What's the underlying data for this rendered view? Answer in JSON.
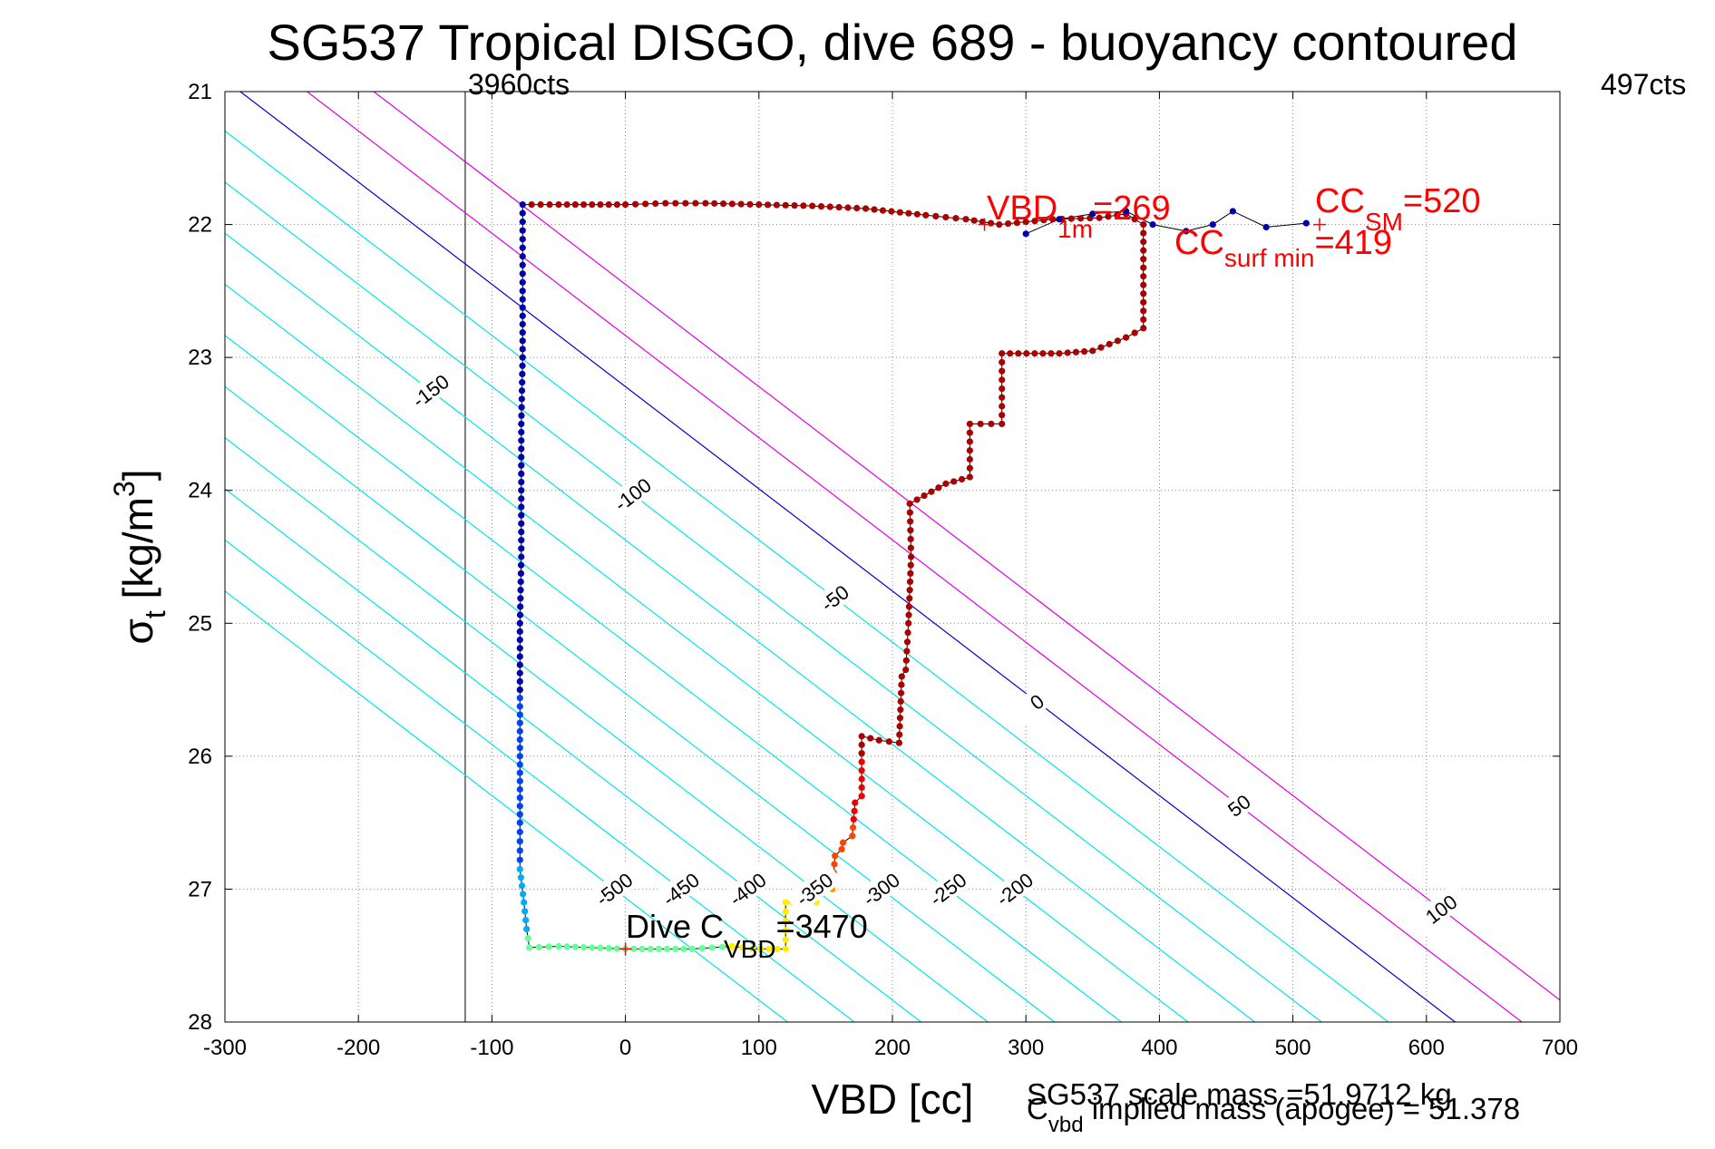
{
  "chart_data": {
    "type": "scatter",
    "title": "SG537 Tropical DISGO, dive 689 - buoyancy contoured",
    "xlabel": "VBD [cc]",
    "ylabel_main": "σ",
    "ylabel_sub": "t",
    "ylabel_unit": " [kg/m",
    "ylabel_sup": "3",
    "ylabel_close": "]",
    "xlim": [
      -300,
      700
    ],
    "ylim": [
      21,
      28
    ],
    "y_reversed": true,
    "grid": true,
    "xticks": [
      -300,
      -200,
      -100,
      0,
      100,
      200,
      300,
      400,
      500,
      600,
      700
    ],
    "yticks": [
      21,
      22,
      23,
      24,
      25,
      26,
      27,
      28
    ],
    "colors": {
      "contour_neg": "#00e5e5",
      "contour_zero": "#0000cc",
      "contour_pos": "#e000e0",
      "annotation_red": "#ff0000",
      "trace": "#000000"
    },
    "vbd_limits": {
      "min_line_x": -120,
      "min_label": "3960cts",
      "max_label": "497cts"
    },
    "contours": [
      {
        "level": -500,
        "label": "-500"
      },
      {
        "level": -450,
        "label": "-450"
      },
      {
        "level": -400,
        "label": "-400"
      },
      {
        "level": -350,
        "label": "-350"
      },
      {
        "level": -300,
        "label": "-300"
      },
      {
        "level": -250,
        "label": "-250"
      },
      {
        "level": -200,
        "label": "-200"
      },
      {
        "level": -150,
        "label": "-150"
      },
      {
        "level": -100,
        "label": "-100"
      },
      {
        "level": -50,
        "label": "-50"
      },
      {
        "level": 0,
        "label": "0"
      },
      {
        "level": 50,
        "label": "50"
      },
      {
        "level": 100,
        "label": "100"
      }
    ],
    "contour_model": {
      "sigma_ref": 27.45,
      "vbd_at_level0_ref": 550,
      "slope_cc_per_sigma": 130
    },
    "annotations": {
      "vbd1m": {
        "x": 269,
        "y": 22.0,
        "main": "VBD",
        "sub": "1m",
        "value": "=269"
      },
      "cc_sm": {
        "x": 520,
        "y": 22.0,
        "main": "CC",
        "sub": "SM",
        "value": "=520"
      },
      "cc_surf_min": {
        "x": 419,
        "y": 22.0,
        "main": "CC",
        "sub": "surf min",
        "value": "=419"
      },
      "dive_c_vbd": {
        "x": 0,
        "y": 27.45,
        "main": "Dive C",
        "sub": "VBD",
        "value": "=3470"
      }
    },
    "footer": {
      "scale_mass": "SG537 scale mass =51.9712 kg",
      "implied_main": "C",
      "implied_sub": "vbd",
      "implied_rest": " implied mass (apogee) = 51.378"
    },
    "dive_trace": [
      {
        "x": -77,
        "y": 21.85
      },
      {
        "x": -77,
        "y": 22.5
      },
      {
        "x": -77,
        "y": 23.0
      },
      {
        "x": -78,
        "y": 23.5
      },
      {
        "x": -78,
        "y": 24.0
      },
      {
        "x": -78,
        "y": 24.5
      },
      {
        "x": -79,
        "y": 25.0
      },
      {
        "x": -79,
        "y": 25.5
      },
      {
        "x": -79,
        "y": 26.0
      },
      {
        "x": -79,
        "y": 26.5
      },
      {
        "x": -79,
        "y": 26.85
      },
      {
        "x": -76,
        "y": 27.1
      },
      {
        "x": -74,
        "y": 27.3
      },
      {
        "x": -72,
        "y": 27.44
      },
      {
        "x": -50,
        "y": 27.43
      },
      {
        "x": 0,
        "y": 27.45
      },
      {
        "x": 50,
        "y": 27.45
      },
      {
        "x": 80,
        "y": 27.43
      }
    ],
    "climb_trace": [
      {
        "x": 80,
        "y": 27.43
      },
      {
        "x": 95,
        "y": 27.45
      },
      {
        "x": 120,
        "y": 27.45
      },
      {
        "x": 120,
        "y": 27.1
      },
      {
        "x": 125,
        "y": 27.1
      },
      {
        "x": 143,
        "y": 27.1
      },
      {
        "x": 143,
        "y": 27.0
      },
      {
        "x": 155,
        "y": 27.0
      },
      {
        "x": 157,
        "y": 26.75
      },
      {
        "x": 162,
        "y": 26.7
      },
      {
        "x": 163,
        "y": 26.65
      },
      {
        "x": 170,
        "y": 26.6
      },
      {
        "x": 172,
        "y": 26.35
      },
      {
        "x": 177,
        "y": 26.3
      },
      {
        "x": 177,
        "y": 25.85
      },
      {
        "x": 190,
        "y": 25.88
      },
      {
        "x": 205,
        "y": 25.9
      },
      {
        "x": 207,
        "y": 25.4
      },
      {
        "x": 210,
        "y": 25.35
      },
      {
        "x": 212,
        "y": 25.0
      },
      {
        "x": 214,
        "y": 24.5
      },
      {
        "x": 213,
        "y": 24.1
      },
      {
        "x": 240,
        "y": 23.95
      },
      {
        "x": 258,
        "y": 23.9
      },
      {
        "x": 258,
        "y": 23.5
      },
      {
        "x": 282,
        "y": 23.5
      },
      {
        "x": 282,
        "y": 22.97
      },
      {
        "x": 325,
        "y": 22.97
      },
      {
        "x": 350,
        "y": 22.95
      },
      {
        "x": 375,
        "y": 22.85
      },
      {
        "x": 388,
        "y": 22.78
      },
      {
        "x": 388,
        "y": 22.0
      },
      {
        "x": 375,
        "y": 21.92
      },
      {
        "x": 355,
        "y": 21.95
      },
      {
        "x": 320,
        "y": 21.96
      },
      {
        "x": 300,
        "y": 21.98
      },
      {
        "x": 280,
        "y": 22.0
      },
      {
        "x": 255,
        "y": 21.96
      },
      {
        "x": 225,
        "y": 21.93
      },
      {
        "x": 180,
        "y": 21.88
      },
      {
        "x": 140,
        "y": 21.86
      },
      {
        "x": 100,
        "y": 21.85
      },
      {
        "x": 60,
        "y": 21.84
      },
      {
        "x": 30,
        "y": 21.84
      },
      {
        "x": 0,
        "y": 21.85
      },
      {
        "x": -50,
        "y": 21.85
      },
      {
        "x": -77,
        "y": 21.85
      }
    ],
    "surface_tail": [
      {
        "x": 300,
        "y": 22.07
      },
      {
        "x": 325,
        "y": 21.96
      },
      {
        "x": 350,
        "y": 21.92
      },
      {
        "x": 375,
        "y": 21.9
      },
      {
        "x": 395,
        "y": 22.0
      },
      {
        "x": 420,
        "y": 22.05
      },
      {
        "x": 440,
        "y": 22.0
      },
      {
        "x": 455,
        "y": 21.9
      },
      {
        "x": 480,
        "y": 22.02
      },
      {
        "x": 510,
        "y": 21.99
      }
    ]
  }
}
